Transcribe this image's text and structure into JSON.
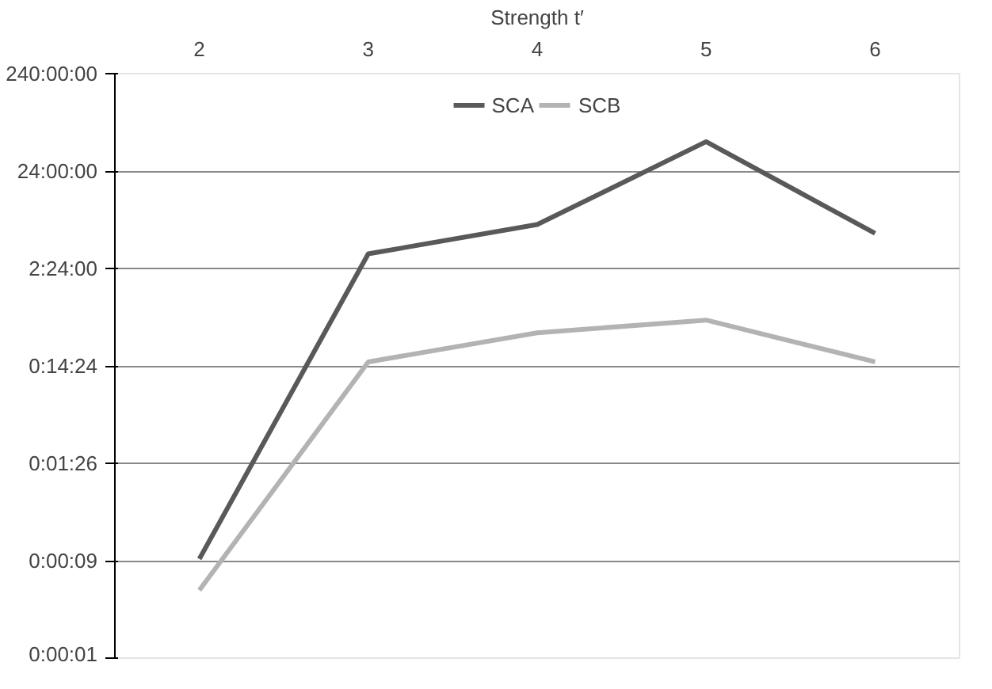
{
  "chart_data": {
    "type": "line",
    "xlabel": "Strength t′",
    "categories": [
      "2",
      "3",
      "4",
      "5",
      "6"
    ],
    "series": [
      {
        "name": "SCA",
        "color": "#595959",
        "values": [
          9,
          12200,
          24400,
          173000,
          19800
        ]
      },
      {
        "name": "SCB",
        "color": "#b3b3b3",
        "values": [
          4.3,
          950,
          1890,
          2550,
          950
        ]
      }
    ],
    "log": "y",
    "ylim": [
      0.864,
      864000
    ],
    "yticks": [
      {
        "value": 0.864,
        "label": "0:00:01"
      },
      {
        "value": 8.64,
        "label": "0:00:09"
      },
      {
        "value": 86.4,
        "label": "0:01:26"
      },
      {
        "value": 864,
        "label": "0:14:24"
      },
      {
        "value": 8640,
        "label": "2:24:00"
      },
      {
        "value": 86400,
        "label": "24:00:00"
      },
      {
        "value": 864000,
        "label": "240:00:00"
      }
    ],
    "grid": "y",
    "legend": "top",
    "marker": "none",
    "line_style": "solid"
  }
}
